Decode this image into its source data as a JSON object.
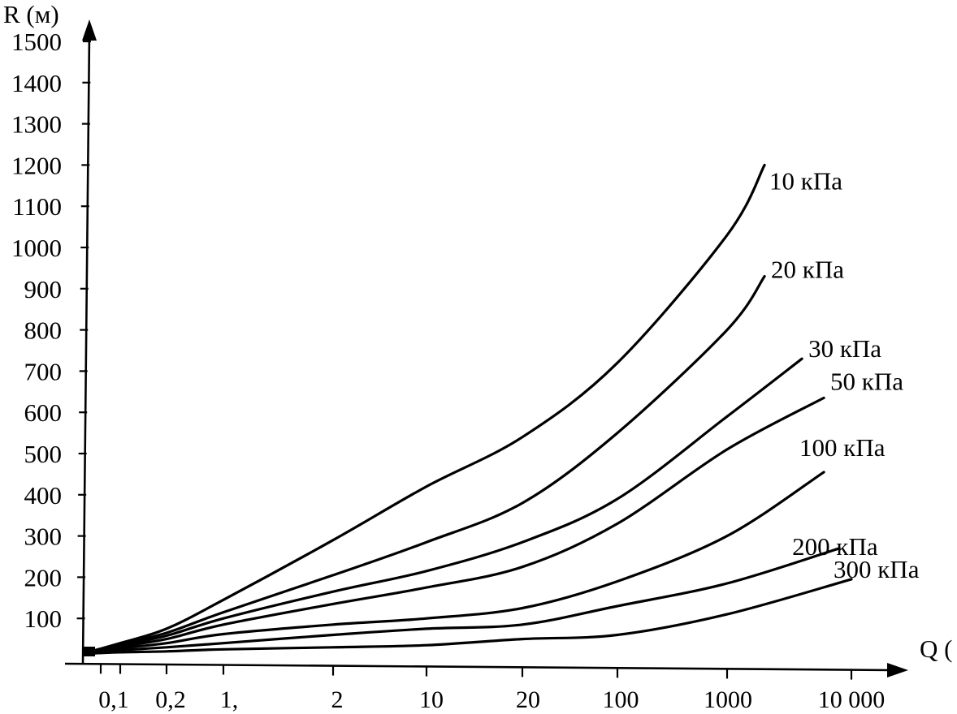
{
  "chart_data": {
    "type": "line",
    "title": "",
    "ylabel": "R (м)",
    "xlabel": "Q (",
    "grid": false,
    "legend": "none",
    "x": [
      "0,1",
      "0,2",
      "1,",
      "2",
      "10",
      "20",
      "100",
      "1000",
      "10 000"
    ],
    "ylim": [
      0,
      1500
    ],
    "yticks": [
      "100",
      "200",
      "300",
      "400",
      "500",
      "600",
      "700",
      "800",
      "900",
      "1000",
      "1100",
      "1200",
      "1300",
      "1400",
      "1500"
    ],
    "series": [
      {
        "name": "10 кПа",
        "x": [
          0,
          0.1,
          0.2,
          1,
          2,
          10,
          20,
          100,
          1000,
          2000
        ],
        "values": [
          20,
          40,
          75,
          145,
          290,
          420,
          540,
          720,
          1030,
          1200
        ]
      },
      {
        "name": "20 кПа",
        "x": [
          0,
          0.1,
          0.2,
          1,
          2,
          10,
          20,
          100,
          1000,
          2000
        ],
        "values": [
          20,
          38,
          65,
          115,
          205,
          285,
          380,
          550,
          800,
          930
        ]
      },
      {
        "name": "30 кПа",
        "x": [
          0,
          0.1,
          0.2,
          1,
          2,
          10,
          20,
          100,
          1000,
          4000
        ],
        "values": [
          20,
          35,
          58,
          100,
          165,
          215,
          285,
          390,
          590,
          730
        ]
      },
      {
        "name": "50 кПа",
        "x": [
          0,
          0.1,
          0.2,
          1,
          2,
          10,
          20,
          100,
          1000,
          6000
        ],
        "values": [
          20,
          32,
          50,
          85,
          135,
          175,
          225,
          330,
          510,
          635
        ]
      },
      {
        "name": "100 кПа",
        "x": [
          0,
          0.1,
          0.2,
          1,
          2,
          10,
          20,
          100,
          1000,
          6000
        ],
        "values": [
          20,
          28,
          40,
          62,
          85,
          100,
          125,
          190,
          300,
          455
        ]
      },
      {
        "name": "200 кПа",
        "x": [
          0,
          0.1,
          0.2,
          1,
          2,
          10,
          20,
          100,
          1000,
          8000
        ],
        "values": [
          20,
          23,
          30,
          40,
          60,
          75,
          85,
          130,
          185,
          270
        ]
      },
      {
        "name": "300 кПа",
        "x": [
          0,
          0.1,
          0.2,
          1,
          2,
          10,
          20,
          100,
          1000,
          10000
        ],
        "values": [
          15,
          18,
          20,
          25,
          30,
          35,
          50,
          60,
          110,
          195
        ]
      }
    ]
  }
}
